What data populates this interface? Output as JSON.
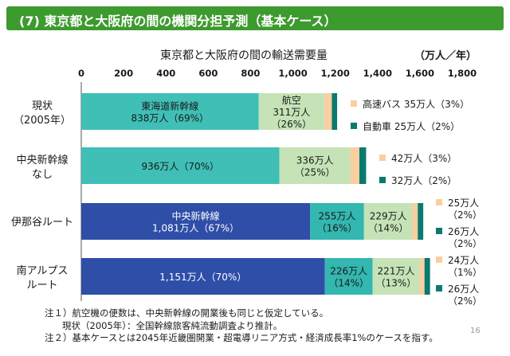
{
  "title": "(7) 東京都と大阪府の間の機関分担予測（基本ケース）",
  "colors": {
    "title_bg": "#3d9a2e",
    "shinkansen_existing": "#3fbfb5",
    "air": "#c5e3b7",
    "bus": "#f9cfa0",
    "car": "#0a7a6e",
    "maglev": "#2e4ea8",
    "air_maglev": "#33b7b0"
  },
  "chart_data": {
    "type": "bar",
    "orientation": "horizontal",
    "stacked": true,
    "title": "東京都と大阪府の間の輸送需要量",
    "unit": "（万人／年）",
    "xlim": [
      0,
      1800
    ],
    "ticks": [
      0,
      200,
      400,
      600,
      800,
      "1,000",
      "1,200",
      "1,400",
      "1,600",
      "1,800"
    ],
    "categories": [
      {
        "line1": "現状",
        "line2": "（2005年）"
      },
      {
        "line1": "中央新幹線",
        "line2": "なし"
      },
      {
        "line1": "伊那谷ルート",
        "line2": ""
      },
      {
        "line1": "南アルプス",
        "line2": "ルート"
      }
    ],
    "rows": [
      {
        "segments": [
          {
            "mode": "shinkansen",
            "value": 838,
            "color": "#3fbfb5",
            "labels": [
              "東海道新幹線",
              "838万人（69%）"
            ]
          },
          {
            "mode": "air",
            "value": 311,
            "color": "#c5e3b7",
            "labels": [
              "航空",
              "311万人",
              "（26%）"
            ]
          },
          {
            "mode": "bus",
            "value": 35,
            "color": "#f9cfa0",
            "labels": []
          },
          {
            "mode": "car",
            "value": 25,
            "color": "#0a7a6e",
            "labels": []
          }
        ]
      },
      {
        "segments": [
          {
            "mode": "shinkansen",
            "value": 936,
            "color": "#3fbfb5",
            "labels": [
              "936万人（70%）"
            ]
          },
          {
            "mode": "air",
            "value": 336,
            "color": "#c5e3b7",
            "labels": [
              "336万人",
              "（25%）"
            ]
          },
          {
            "mode": "bus",
            "value": 42,
            "color": "#f9cfa0",
            "labels": []
          },
          {
            "mode": "car",
            "value": 32,
            "color": "#0a7a6e",
            "labels": []
          }
        ]
      },
      {
        "segments": [
          {
            "mode": "maglev",
            "value": 1081,
            "color": "#2e4ea8",
            "labels": [
              "中央新幹線",
              "1,081万人（67%）"
            ]
          },
          {
            "mode": "shinkansen",
            "value": 255,
            "color": "#33b7b0",
            "labels": [
              "255万人",
              "（16%）"
            ]
          },
          {
            "mode": "air",
            "value": 229,
            "color": "#c5e3b7",
            "labels": [
              "229万人",
              "（14%）"
            ]
          },
          {
            "mode": "bus",
            "value": 25,
            "color": "#f9cfa0",
            "labels": []
          },
          {
            "mode": "car",
            "value": 26,
            "color": "#0a7a6e",
            "labels": []
          }
        ]
      },
      {
        "segments": [
          {
            "mode": "maglev",
            "value": 1151,
            "color": "#2e4ea8",
            "labels": [
              "1,151万人（70%）"
            ]
          },
          {
            "mode": "shinkansen",
            "value": 226,
            "color": "#33b7b0",
            "labels": [
              "226万人",
              "（14%）"
            ]
          },
          {
            "mode": "air",
            "value": 221,
            "color": "#c5e3b7",
            "labels": [
              "221万人",
              "（13%）"
            ]
          },
          {
            "mode": "bus",
            "value": 24,
            "color": "#f9cfa0",
            "labels": []
          },
          {
            "mode": "car",
            "value": 26,
            "color": "#0a7a6e",
            "labels": []
          }
        ]
      }
    ],
    "side_labels": [
      [
        {
          "mode": "bus",
          "lines": [
            "高速バス 35万人（3%）"
          ]
        },
        {
          "mode": "car",
          "lines": [
            "自動車 25万人（2%）"
          ]
        }
      ],
      [
        {
          "mode": "bus",
          "lines": [
            "42万人（3%）"
          ]
        },
        {
          "mode": "car",
          "lines": [
            "32万人（2%）"
          ]
        }
      ],
      [
        {
          "mode": "bus",
          "lines": [
            "25万人",
            "（2%）"
          ]
        },
        {
          "mode": "car",
          "lines": [
            "26万人",
            "（2%）"
          ]
        }
      ],
      [
        {
          "mode": "bus",
          "lines": [
            "24万人",
            "（1%）"
          ]
        },
        {
          "mode": "car",
          "lines": [
            "26万人",
            "（2%）"
          ]
        }
      ]
    ]
  },
  "notes": [
    "注１）航空機の便数は、中央新幹線の開業後も同じと仮定している。",
    "現状（2005年）：全国幹線旅客純流動調査より推計。",
    "注２）基本ケースとは2045年近畿圏開業・超電導リニア方式・経済成長率1%のケースを指す。"
  ],
  "page_number": "16"
}
